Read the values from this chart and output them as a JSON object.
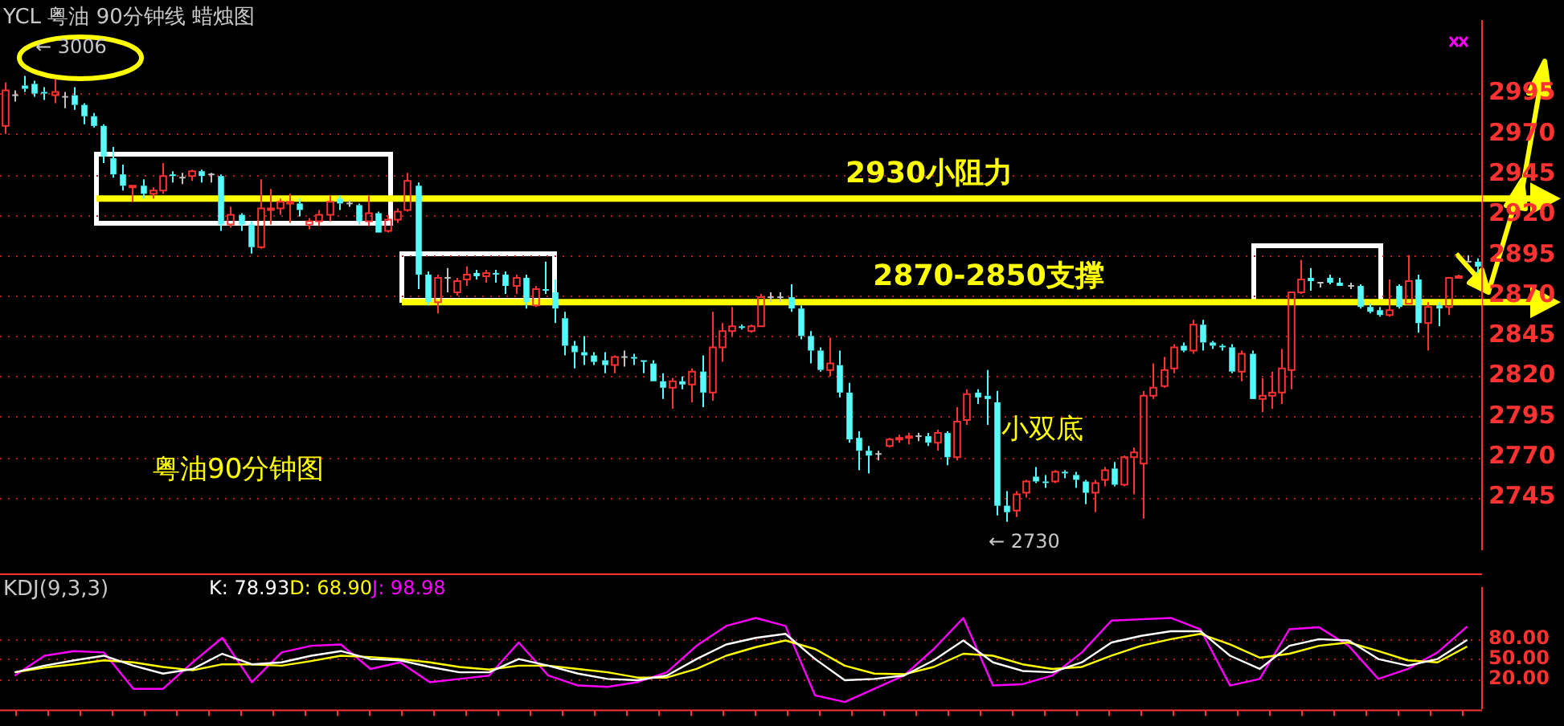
{
  "chart_data": [
    {
      "type": "candlestick",
      "title": "YCL 粤油 90分钟线 蜡烛图",
      "categories": [
        null,
        null,
        null,
        null,
        null,
        null,
        null,
        null,
        null,
        null,
        null,
        null,
        null,
        null,
        null,
        null,
        null,
        null,
        null,
        null,
        null,
        null,
        null,
        null,
        null,
        null,
        null,
        null,
        null,
        null,
        null,
        null,
        null,
        null,
        null,
        null,
        null,
        null,
        null,
        null,
        null,
        null,
        null,
        null,
        null,
        null,
        null,
        null,
        null,
        null,
        null,
        null,
        null,
        null,
        null,
        null,
        null,
        null,
        null,
        null,
        null,
        null,
        null,
        null,
        null,
        null,
        null,
        null,
        null,
        null,
        null,
        null,
        null,
        null,
        null,
        null,
        null,
        null,
        null,
        null,
        null,
        null,
        null,
        null,
        null,
        null,
        null,
        null,
        null,
        null,
        null,
        null,
        null,
        null,
        null,
        null,
        null,
        null,
        null,
        null,
        null,
        null,
        null,
        null,
        null,
        null,
        null,
        null,
        null,
        null,
        null,
        null,
        null,
        null,
        null,
        null,
        null,
        null,
        null,
        null,
        null,
        null,
        null,
        null,
        null,
        null,
        null,
        null,
        null,
        null,
        null,
        null,
        null,
        null,
        null,
        null,
        null,
        null,
        null,
        null,
        null,
        null,
        null,
        null,
        null,
        null,
        null,
        null,
        null,
        null,
        null
      ],
      "ohlc": [
        [
          2975,
          3002,
          2970,
          2997
        ],
        [
          2994,
          2997,
          2990,
          2994
        ],
        [
          3000,
          3006,
          2996,
          2998
        ],
        [
          3001,
          3003,
          2993,
          2995
        ],
        [
          2996,
          2999,
          2991,
          2995
        ],
        [
          2994,
          3004,
          2989,
          2996
        ],
        [
          2993,
          2996,
          2986,
          2993
        ],
        [
          2994,
          2999,
          2985,
          2988
        ],
        [
          2988,
          2989,
          2976,
          2981
        ],
        [
          2981,
          2983,
          2974,
          2975
        ],
        [
          2975,
          2976,
          2952,
          2956
        ],
        [
          2955,
          2962,
          2943,
          2945
        ],
        [
          2945,
          2951,
          2935,
          2938
        ],
        [
          2937,
          2938,
          2928,
          2938
        ],
        [
          2938,
          2942,
          2930,
          2933
        ],
        [
          2933,
          2937,
          2930,
          2935
        ],
        [
          2935,
          2952,
          2933,
          2944
        ],
        [
          2945,
          2947,
          2940,
          2944
        ],
        [
          2943,
          2946,
          2939,
          2943
        ],
        [
          2944,
          2948,
          2941,
          2947
        ],
        [
          2947,
          2948,
          2940,
          2944
        ],
        [
          2945,
          2946,
          2940,
          2945
        ],
        [
          2944,
          2945,
          2910,
          2914
        ],
        [
          2914,
          2925,
          2912,
          2920
        ],
        [
          2920,
          2921,
          2910,
          2914
        ],
        [
          2914,
          2916,
          2896,
          2900
        ],
        [
          2900,
          2942,
          2899,
          2924
        ],
        [
          2923,
          2936,
          2914,
          2924
        ],
        [
          2924,
          2930,
          2920,
          2928
        ],
        [
          2927,
          2933,
          2915,
          2928
        ],
        [
          2927,
          2930,
          2919,
          2923
        ],
        [
          2914,
          2918,
          2911,
          2916
        ],
        [
          2916,
          2923,
          2913,
          2920
        ],
        [
          2920,
          2932,
          2916,
          2928
        ],
        [
          2930,
          2932,
          2923,
          2927
        ],
        [
          2927,
          2929,
          2925,
          2927
        ],
        [
          2926,
          2927,
          2914,
          2916
        ],
        [
          2916,
          2932,
          2913,
          2921
        ],
        [
          2921,
          2922,
          2909,
          2909
        ],
        [
          2910,
          2920,
          2909,
          2917
        ],
        [
          2917,
          2924,
          2915,
          2922
        ],
        [
          2923,
          2946,
          2922,
          2941
        ],
        [
          2938,
          2940,
          2874,
          2883
        ],
        [
          2883,
          2885,
          2864,
          2866
        ],
        [
          2866,
          2883,
          2859,
          2881
        ],
        [
          2881,
          2887,
          2872,
          2881
        ],
        [
          2872,
          2881,
          2870,
          2879
        ],
        [
          2880,
          2888,
          2876,
          2883
        ],
        [
          2884,
          2886,
          2880,
          2882
        ],
        [
          2882,
          2886,
          2878,
          2884
        ],
        [
          2884,
          2886,
          2878,
          2883
        ],
        [
          2883,
          2885,
          2871,
          2876
        ],
        [
          2876,
          2883,
          2871,
          2881
        ],
        [
          2881,
          2883,
          2862,
          2866
        ],
        [
          2864,
          2876,
          2863,
          2874
        ],
        [
          2874,
          2891,
          2871,
          2873
        ],
        [
          2872,
          2880,
          2853,
          2862
        ],
        [
          2856,
          2860,
          2833,
          2839
        ],
        [
          2839,
          2842,
          2825,
          2835
        ],
        [
          2835,
          2845,
          2827,
          2833
        ],
        [
          2833,
          2835,
          2827,
          2829
        ],
        [
          2830,
          2835,
          2822,
          2827
        ],
        [
          2827,
          2833,
          2822,
          2832
        ],
        [
          2832,
          2836,
          2826,
          2832
        ],
        [
          2832,
          2834,
          2827,
          2831
        ],
        [
          2830,
          2830,
          2822,
          2829
        ],
        [
          2828,
          2830,
          2817,
          2817
        ],
        [
          2817,
          2822,
          2806,
          2813
        ],
        [
          2813,
          2819,
          2800,
          2817
        ],
        [
          2817,
          2820,
          2812,
          2815
        ],
        [
          2815,
          2825,
          2804,
          2823
        ],
        [
          2823,
          2833,
          2801,
          2810
        ],
        [
          2810,
          2860,
          2805,
          2838
        ],
        [
          2838,
          2853,
          2829,
          2848
        ],
        [
          2848,
          2863,
          2845,
          2851
        ],
        [
          2851,
          2852,
          2849,
          2850
        ],
        [
          2848,
          2852,
          2847,
          2851
        ],
        [
          2851,
          2871,
          2851,
          2869
        ],
        [
          2869,
          2872,
          2866,
          2869
        ],
        [
          2869,
          2872,
          2866,
          2869
        ],
        [
          2869,
          2877,
          2860,
          2862
        ],
        [
          2862,
          2864,
          2843,
          2845
        ],
        [
          2845,
          2848,
          2828,
          2836
        ],
        [
          2836,
          2838,
          2823,
          2824
        ],
        [
          2824,
          2844,
          2820,
          2828
        ],
        [
          2827,
          2836,
          2807,
          2810
        ],
        [
          2810,
          2816,
          2779,
          2781
        ],
        [
          2782,
          2786,
          2762,
          2774
        ],
        [
          2774,
          2777,
          2760,
          2771
        ],
        [
          2772,
          2774,
          2768,
          2772
        ],
        [
          2777,
          2782,
          2776,
          2781
        ],
        [
          2781,
          2784,
          2779,
          2782
        ],
        [
          2782,
          2785,
          2778,
          2783
        ],
        [
          2783,
          2785,
          2780,
          2783
        ],
        [
          2783,
          2785,
          2777,
          2779
        ],
        [
          2779,
          2787,
          2774,
          2785
        ],
        [
          2785,
          2786,
          2765,
          2770
        ],
        [
          2770,
          2801,
          2768,
          2792
        ],
        [
          2793,
          2812,
          2790,
          2809
        ],
        [
          2810,
          2812,
          2803,
          2807
        ],
        [
          2808,
          2824,
          2790,
          2806
        ],
        [
          2804,
          2811,
          2734,
          2740
        ],
        [
          2740,
          2749,
          2730,
          2736
        ],
        [
          2737,
          2749,
          2733,
          2747
        ],
        [
          2748,
          2756,
          2745,
          2755
        ],
        [
          2758,
          2764,
          2754,
          2755
        ],
        [
          2755,
          2759,
          2751,
          2754
        ],
        [
          2755,
          2762,
          2754,
          2761
        ],
        [
          2761,
          2762,
          2757,
          2760
        ],
        [
          2759,
          2761,
          2751,
          2756
        ],
        [
          2755,
          2756,
          2741,
          2748
        ],
        [
          2748,
          2756,
          2736,
          2754
        ],
        [
          2756,
          2764,
          2752,
          2762
        ],
        [
          2763,
          2767,
          2752,
          2753
        ],
        [
          2753,
          2771,
          2752,
          2770
        ],
        [
          2770,
          2776,
          2747,
          2773
        ],
        [
          2766,
          2811,
          2732,
          2808
        ],
        [
          2808,
          2828,
          2806,
          2813
        ],
        [
          2814,
          2832,
          2813,
          2824
        ],
        [
          2825,
          2840,
          2822,
          2838
        ],
        [
          2839,
          2841,
          2835,
          2836
        ],
        [
          2836,
          2855,
          2834,
          2852
        ],
        [
          2852,
          2855,
          2836,
          2841
        ],
        [
          2841,
          2842,
          2837,
          2839
        ],
        [
          2839,
          2840,
          2836,
          2838
        ],
        [
          2838,
          2840,
          2822,
          2823
        ],
        [
          2823,
          2836,
          2817,
          2834
        ],
        [
          2834,
          2836,
          2806,
          2806
        ],
        [
          2806,
          2819,
          2798,
          2808
        ],
        [
          2808,
          2823,
          2800,
          2810
        ],
        [
          2810,
          2837,
          2803,
          2825
        ],
        [
          2824,
          2872,
          2812,
          2872
        ],
        [
          2872,
          2892,
          2871,
          2880
        ],
        [
          2881,
          2887,
          2873,
          2879
        ],
        [
          2878,
          2878,
          2875,
          2878
        ],
        [
          2881,
          2883,
          2877,
          2878
        ],
        [
          2878,
          2881,
          2876,
          2876
        ],
        [
          2876,
          2878,
          2874,
          2876
        ],
        [
          2876,
          2877,
          2862,
          2863
        ],
        [
          2863,
          2865,
          2859,
          2860
        ],
        [
          2861,
          2863,
          2857,
          2858
        ],
        [
          2858,
          2880,
          2857,
          2861
        ],
        [
          2876,
          2877,
          2862,
          2863
        ],
        [
          2865,
          2895,
          2865,
          2879
        ],
        [
          2880,
          2883,
          2847,
          2853
        ],
        [
          2853,
          2866,
          2836,
          2863
        ],
        [
          2864,
          2866,
          2851,
          2862
        ],
        [
          2863,
          2881,
          2858,
          2881
        ],
        [
          2881,
          2883,
          2881,
          2882
        ],
        [
          2891,
          2895,
          2891,
          2891
        ],
        [
          2891,
          2893,
          2884,
          2888
        ]
      ],
      "ylim": [
        2713,
        3040
      ],
      "yticks": [
        2745,
        2770,
        2795,
        2820,
        2845,
        2870,
        2895,
        2920,
        2945,
        2970,
        2995
      ],
      "grid": "y",
      "tick_labels": "y",
      "ref_lines": [
        {
          "axis": "y",
          "value": 2930,
          "label": "2930小阻力",
          "color": "#ffff00"
        },
        {
          "axis": "y",
          "value": 2866,
          "label": "2870-2850支撑",
          "color": "#ffff00"
        }
      ],
      "annotations": [
        "← 3006",
        "粤油90分钟图",
        "小双底",
        "← 2730"
      ]
    },
    {
      "type": "line",
      "title": "KDJ(9,3,3)",
      "categories": [
        null,
        null,
        null,
        null,
        null,
        null,
        null,
        null,
        null,
        null,
        null,
        null,
        null,
        null,
        null,
        null,
        null,
        null,
        null,
        null,
        null,
        null,
        null,
        null,
        null,
        null,
        null,
        null,
        null,
        null,
        null,
        null,
        null,
        null,
        null,
        null,
        null,
        null,
        null,
        null,
        null,
        null,
        null,
        null,
        null,
        null,
        null,
        null,
        null,
        null
      ],
      "series": [
        {
          "name": "K: 78.93",
          "color": "#ffffff",
          "values": [
            30,
            40,
            48,
            55,
            40,
            28,
            35,
            58,
            42,
            45,
            55,
            62,
            50,
            48,
            38,
            30,
            30,
            50,
            40,
            28,
            20,
            18,
            25,
            50,
            72,
            82,
            88,
            50,
            18,
            20,
            25,
            48,
            78,
            45,
            32,
            30,
            45,
            75,
            85,
            92,
            92,
            55,
            35,
            70,
            80,
            78,
            50,
            40,
            50,
            79
          ]
        },
        {
          "name": "D: 68.90",
          "color": "#ffff00",
          "values": [
            30,
            37,
            42,
            48,
            45,
            38,
            33,
            42,
            42,
            40,
            47,
            55,
            53,
            50,
            45,
            38,
            34,
            40,
            40,
            35,
            30,
            22,
            22,
            35,
            55,
            68,
            78,
            65,
            40,
            28,
            27,
            38,
            58,
            55,
            42,
            35,
            38,
            55,
            70,
            80,
            88,
            72,
            52,
            58,
            70,
            75,
            62,
            48,
            45,
            69
          ]
        },
        {
          "name": "J: 98.98",
          "color": "#ff00ff",
          "values": [
            25,
            55,
            62,
            60,
            5,
            5,
            45,
            82,
            15,
            60,
            70,
            72,
            35,
            45,
            15,
            20,
            25,
            75,
            25,
            10,
            8,
            15,
            30,
            70,
            100,
            112,
            100,
            -5,
            -15,
            5,
            25,
            65,
            112,
            10,
            12,
            25,
            60,
            108,
            110,
            112,
            95,
            10,
            20,
            95,
            98,
            70,
            20,
            35,
            60,
            99
          ]
        }
      ],
      "ylim": [
        -24,
        157
      ],
      "yticks": [
        {
          "value": 20,
          "label": "20.00"
        },
        {
          "value": 50,
          "label": "50.00"
        },
        {
          "value": 80,
          "label": "80.00"
        }
      ],
      "grid": "y",
      "tick_labels": "y",
      "marker": "none",
      "line_style": "solid"
    }
  ]
}
